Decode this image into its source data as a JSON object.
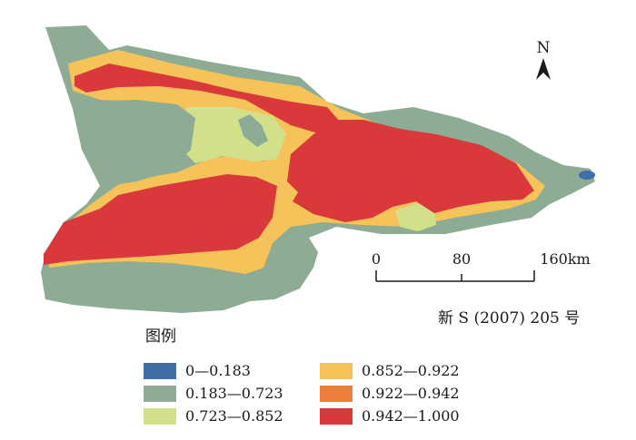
{
  "map": {
    "north_label": "N",
    "scale": {
      "ticks": [
        "0",
        "80",
        "160km"
      ]
    },
    "approval_number": "新 S (2007) 205 号",
    "legend": {
      "title": "图例",
      "items": [
        {
          "label": "0—0.183",
          "color": "#3f6fa6"
        },
        {
          "label": "0.183—0.723",
          "color": "#8eab93"
        },
        {
          "label": "0.723—0.852",
          "color": "#d3e08a"
        },
        {
          "label": "0.852—0.922",
          "color": "#f5c35a"
        },
        {
          "label": "0.922—0.942",
          "color": "#eb7f3d"
        },
        {
          "label": "0.942—1.000",
          "color": "#d9393b"
        }
      ]
    },
    "colors": {
      "class_1": "#3f6fa6",
      "class_2": "#8eab93",
      "class_3": "#d3e08a",
      "class_4": "#f5c35a",
      "class_5": "#eb7f3d",
      "class_6": "#d9393b"
    }
  }
}
